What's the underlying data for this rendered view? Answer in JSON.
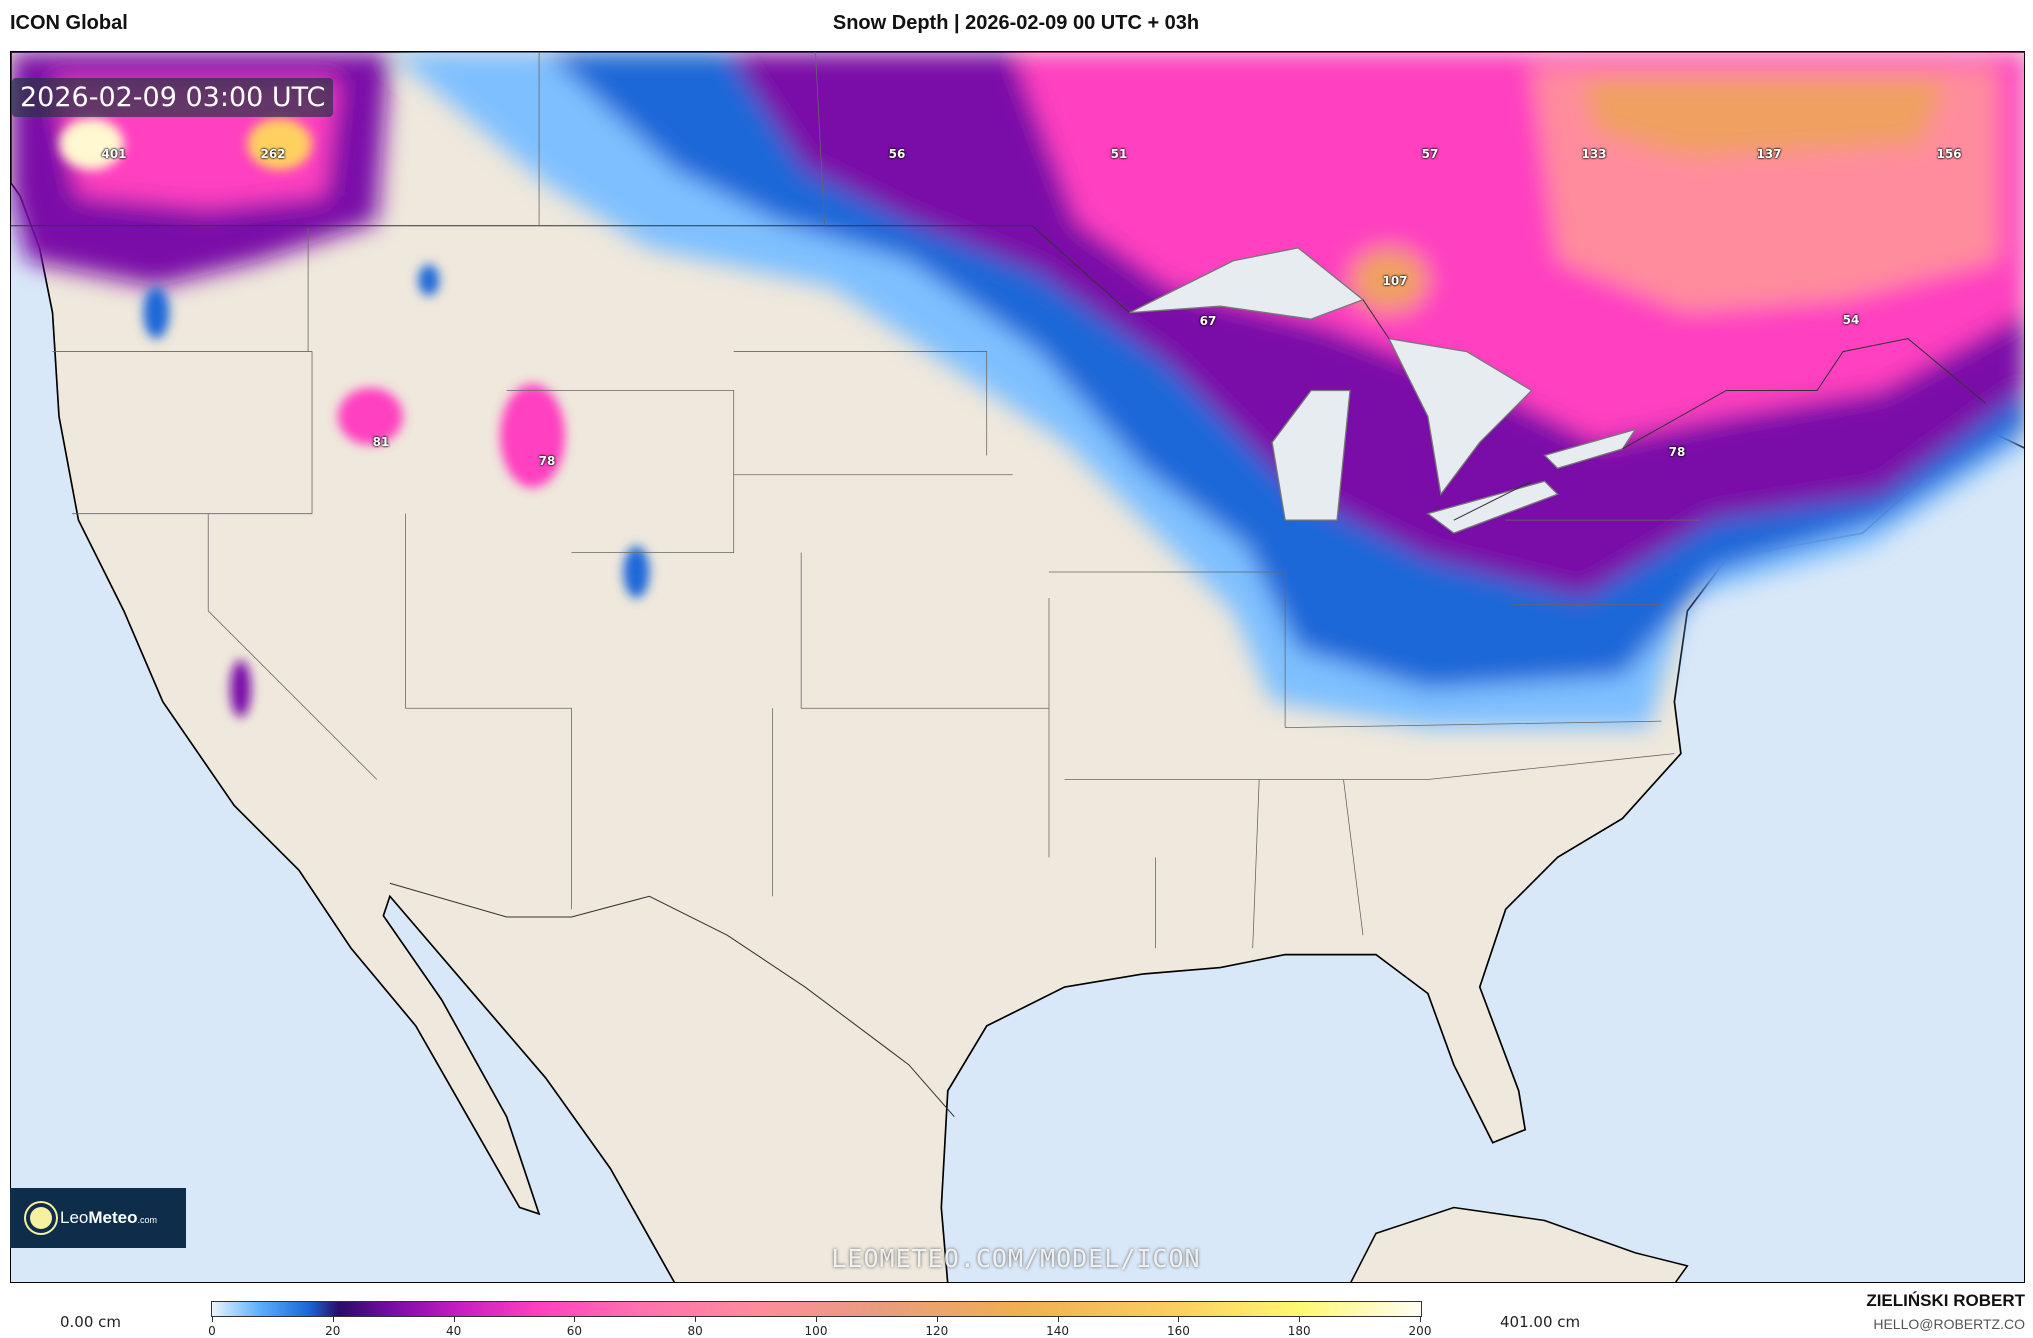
{
  "header": {
    "model": "ICON Global",
    "title": "Snow Depth | 2026-02-09 00 UTC + 03h"
  },
  "map": {
    "valid_time": "2026-02-09 03:00 UTC",
    "watermark": "LEOMETEO.COM/MODEL/ICON",
    "logo": {
      "brand_light": "Leo",
      "brand_bold": "Meteo",
      "suffix": ".com"
    },
    "colors": {
      "ocean": "#d9e8f8",
      "land": "#efe8dc",
      "snow_light": "#5aaefc",
      "snow_blue": "#1a67d8",
      "snow_purple": "#7a0ca8",
      "snow_pink": "#ff40c0",
      "snow_salmon": "#ff8c9c",
      "snow_orange": "#f0a060"
    },
    "max_labels": [
      {
        "value": "401",
        "region": "British Columbia coast"
      },
      {
        "value": "262",
        "region": "British Columbia interior"
      },
      {
        "value": "56",
        "region": "Manitoba"
      },
      {
        "value": "51",
        "region": "Ontario northwest"
      },
      {
        "value": "57",
        "region": "Ontario north"
      },
      {
        "value": "133",
        "region": "Quebec west"
      },
      {
        "value": "137",
        "region": "Quebec central"
      },
      {
        "value": "156",
        "region": "Quebec east"
      },
      {
        "value": "107",
        "region": "Ontario near Lake Superior"
      },
      {
        "value": "67",
        "region": "Lake Superior"
      },
      {
        "value": "54",
        "region": "Quebec south"
      },
      {
        "value": "81",
        "region": "Idaho"
      },
      {
        "value": "78",
        "region": "Wyoming"
      },
      {
        "value": "78",
        "region": "New York / Ontario"
      }
    ]
  },
  "legend": {
    "min_label": "0.00 cm",
    "max_label": "401.00 cm",
    "ticks": [
      "0",
      "20",
      "40",
      "60",
      "80",
      "100",
      "120",
      "140",
      "160",
      "180",
      "200"
    ]
  },
  "footer": {
    "author": "ZIELIŃSKI ROBERT",
    "email": "HELLO@ROBERTZ.CO"
  }
}
